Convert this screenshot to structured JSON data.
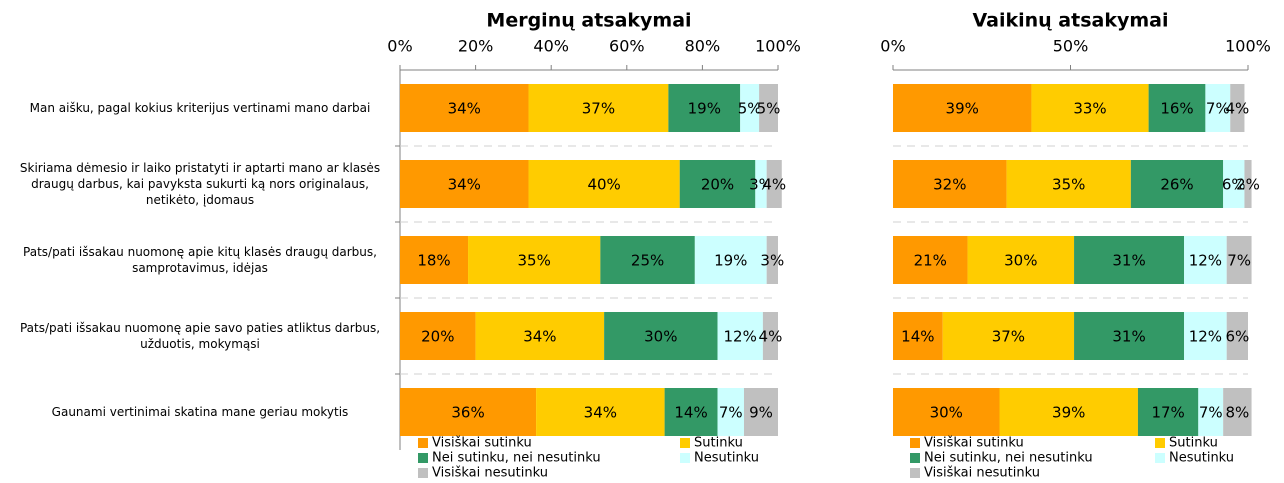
{
  "chart_data": [
    {
      "type": "stacked-bar-horizontal",
      "title": "Merginų atsakymai",
      "categories": [
        "Man aišku, pagal kokius kriterijus vertinami mano darbai",
        "Skiriama dėmesio ir laiko pristatyti ir aptarti mano ar klasės draugų darbus, kai pavyksta sukurti ką nors originalaus, netikėto, įdomaus",
        "Pats/pati išsakau nuomonę apie kitų klasės draugų darbus, samprotavimus, idėjas",
        "Pats/pati išsakau nuomonę apie savo paties atliktus darbus, užduotis, mokymąsi",
        "Gaunami vertinimai skatina mane geriau mokytis"
      ],
      "xlim": [
        0,
        100
      ],
      "xticks": [
        {
          "value": 0,
          "label": "0%"
        },
        {
          "value": 20,
          "label": "20%"
        },
        {
          "value": 40,
          "label": "40%"
        },
        {
          "value": 60,
          "label": "60%"
        },
        {
          "value": 80,
          "label": "80%"
        },
        {
          "value": 100,
          "label": "100%"
        }
      ],
      "series": [
        {
          "name": "Visiškai sutinku",
          "color": "#ff9900",
          "values": [
            34,
            34,
            18,
            20,
            36
          ],
          "value_labels": [
            "34%",
            "34%",
            "18%",
            "20%",
            "36%"
          ]
        },
        {
          "name": "Sutinku",
          "color": "#ffcc00",
          "values": [
            37,
            40,
            35,
            34,
            34
          ],
          "value_labels": [
            "37%",
            "40%",
            "35%",
            "34%",
            "34%"
          ]
        },
        {
          "name": "Nei sutinku, nei nesutinku",
          "color": "#339966",
          "values": [
            19,
            20,
            25,
            30,
            14
          ],
          "value_labels": [
            "19%",
            "20%",
            "25%",
            "30%",
            "14%"
          ]
        },
        {
          "name": "Nesutinku",
          "color": "#ccffff",
          "values": [
            5,
            3,
            19,
            12,
            7
          ],
          "value_labels": [
            "5%",
            "3%",
            "19%",
            "12%",
            "7%"
          ]
        },
        {
          "name": "Visiškai nesutinku",
          "color": "#c0c0c0",
          "values": [
            5,
            4,
            3,
            4,
            9
          ],
          "value_labels": [
            "5%",
            "4%",
            "3%",
            "4%",
            "9%"
          ]
        }
      ]
    },
    {
      "type": "stacked-bar-horizontal",
      "title": "Vaikinų atsakymai",
      "xlim": [
        0,
        100
      ],
      "xticks": [
        {
          "value": 0,
          "label": "0%"
        },
        {
          "value": 50,
          "label": "50%"
        },
        {
          "value": 100,
          "label": "100%"
        }
      ],
      "series": [
        {
          "name": "Visiškai sutinku",
          "color": "#ff9900",
          "values": [
            39,
            32,
            21,
            14,
            30
          ],
          "value_labels": [
            "39%",
            "32%",
            "21%",
            "14%",
            "30%"
          ]
        },
        {
          "name": "Sutinku",
          "color": "#ffcc00",
          "values": [
            33,
            35,
            30,
            37,
            39
          ],
          "value_labels": [
            "33%",
            "35%",
            "30%",
            "37%",
            "39%"
          ]
        },
        {
          "name": "Nei sutinku, nei nesutinku",
          "color": "#339966",
          "values": [
            16,
            26,
            31,
            31,
            17
          ],
          "value_labels": [
            "16%",
            "26%",
            "31%",
            "31%",
            "17%"
          ]
        },
        {
          "name": "Nesutinku",
          "color": "#ccffff",
          "values": [
            7,
            6,
            12,
            12,
            7
          ],
          "value_labels": [
            "7%",
            "6%",
            "12%",
            "12%",
            "7%"
          ]
        },
        {
          "name": "Visiškai nesutinku",
          "color": "#c0c0c0",
          "values": [
            4,
            2,
            7,
            6,
            8
          ],
          "value_labels": [
            "4%",
            "2%",
            "7%",
            "6%",
            "8%"
          ]
        }
      ]
    }
  ]
}
